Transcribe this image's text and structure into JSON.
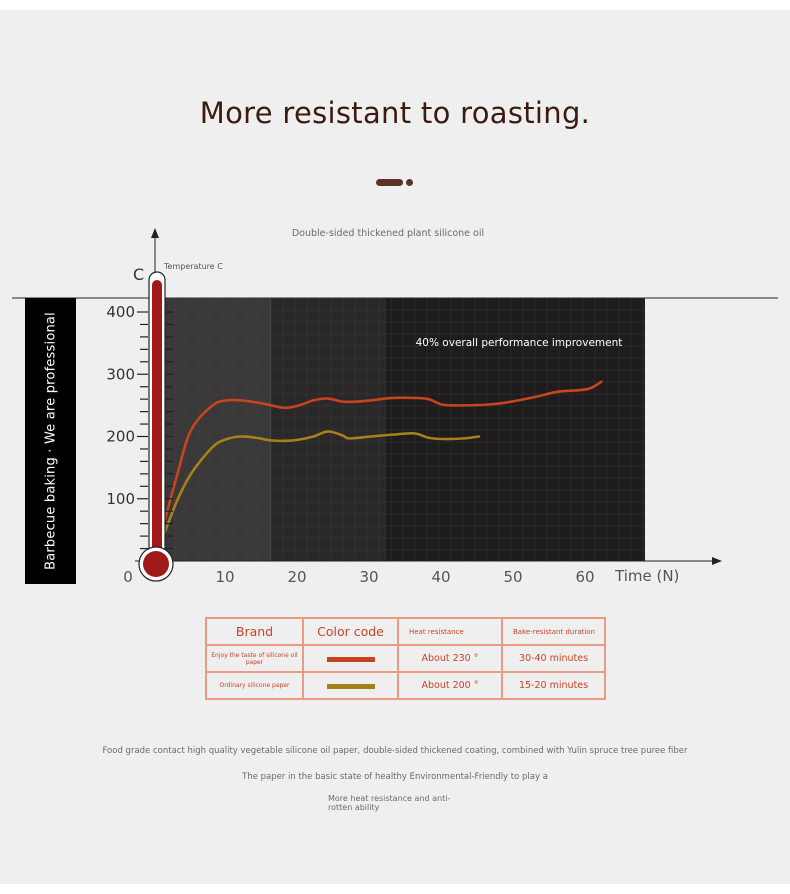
{
  "header": {
    "title": "More resistant to roasting.",
    "subcaption": "Double-sided thickened plant silicone oil"
  },
  "sidebar": {
    "text": "Barbecue baking · We are professional"
  },
  "chart_data": {
    "type": "line",
    "title": "",
    "xlabel": "Time (N)",
    "ylabel": "Temperature C",
    "y_axis_letter": "C",
    "annotation": "40% overall performance improvement",
    "x_ticks": [
      0,
      10,
      20,
      30,
      40,
      50,
      60
    ],
    "y_ticks": [
      100,
      200,
      300,
      400
    ],
    "xlim": [
      0,
      70
    ],
    "ylim": [
      0,
      400
    ],
    "grid": true,
    "series": [
      {
        "color": "#c8441f",
        "x": [
          1,
          3,
          5,
          8,
          10,
          12,
          15,
          18,
          20,
          22,
          24,
          26,
          28,
          30,
          33,
          36,
          38,
          40,
          43,
          47,
          50,
          53,
          56,
          60,
          62
        ],
        "y": [
          50,
          135,
          210,
          250,
          258,
          258,
          253,
          246,
          250,
          258,
          261,
          256,
          256,
          258,
          262,
          262,
          260,
          251,
          250,
          252,
          257,
          264,
          272,
          276,
          288
        ]
      },
      {
        "color": "#a6801a",
        "x": [
          1,
          3,
          5,
          8,
          10,
          12,
          14,
          16,
          18,
          20,
          22,
          24,
          26,
          27,
          30,
          33,
          36,
          38,
          40,
          43,
          45
        ],
        "y": [
          35,
          95,
          140,
          183,
          196,
          200,
          198,
          194,
          193,
          195,
          200,
          208,
          202,
          197,
          200,
          203,
          205,
          198,
          196,
          197,
          200
        ]
      }
    ],
    "bands": [
      {
        "from": 0,
        "to": 16,
        "color": "#3a3838"
      },
      {
        "from": 16,
        "to": 32,
        "color": "#2a2828"
      },
      {
        "from": 32,
        "to": 70,
        "color": "#1e1c1c"
      }
    ]
  },
  "legend_table": {
    "headers": [
      "Brand",
      "Color code",
      "Heat resistance",
      "Bake-resistant duration"
    ],
    "rows": [
      {
        "brand": "Enjoy the taste of silicone oil paper",
        "color": "#c8441f",
        "heat": "About 230 °",
        "duration": "30-40 minutes"
      },
      {
        "brand": "Ordinary silicone paper",
        "color": "#a6801a",
        "heat": "About 200 °",
        "duration": "15-20 minutes"
      }
    ]
  },
  "footer": {
    "line1": "Food grade contact high quality vegetable silicone oil paper, double-sided thickened coating, combined with Yulin spruce tree puree fiber",
    "line2": "The paper in the basic state of healthy Environmental-Friendly to play a",
    "line3": "More heat resistance and anti-rotten ability"
  }
}
